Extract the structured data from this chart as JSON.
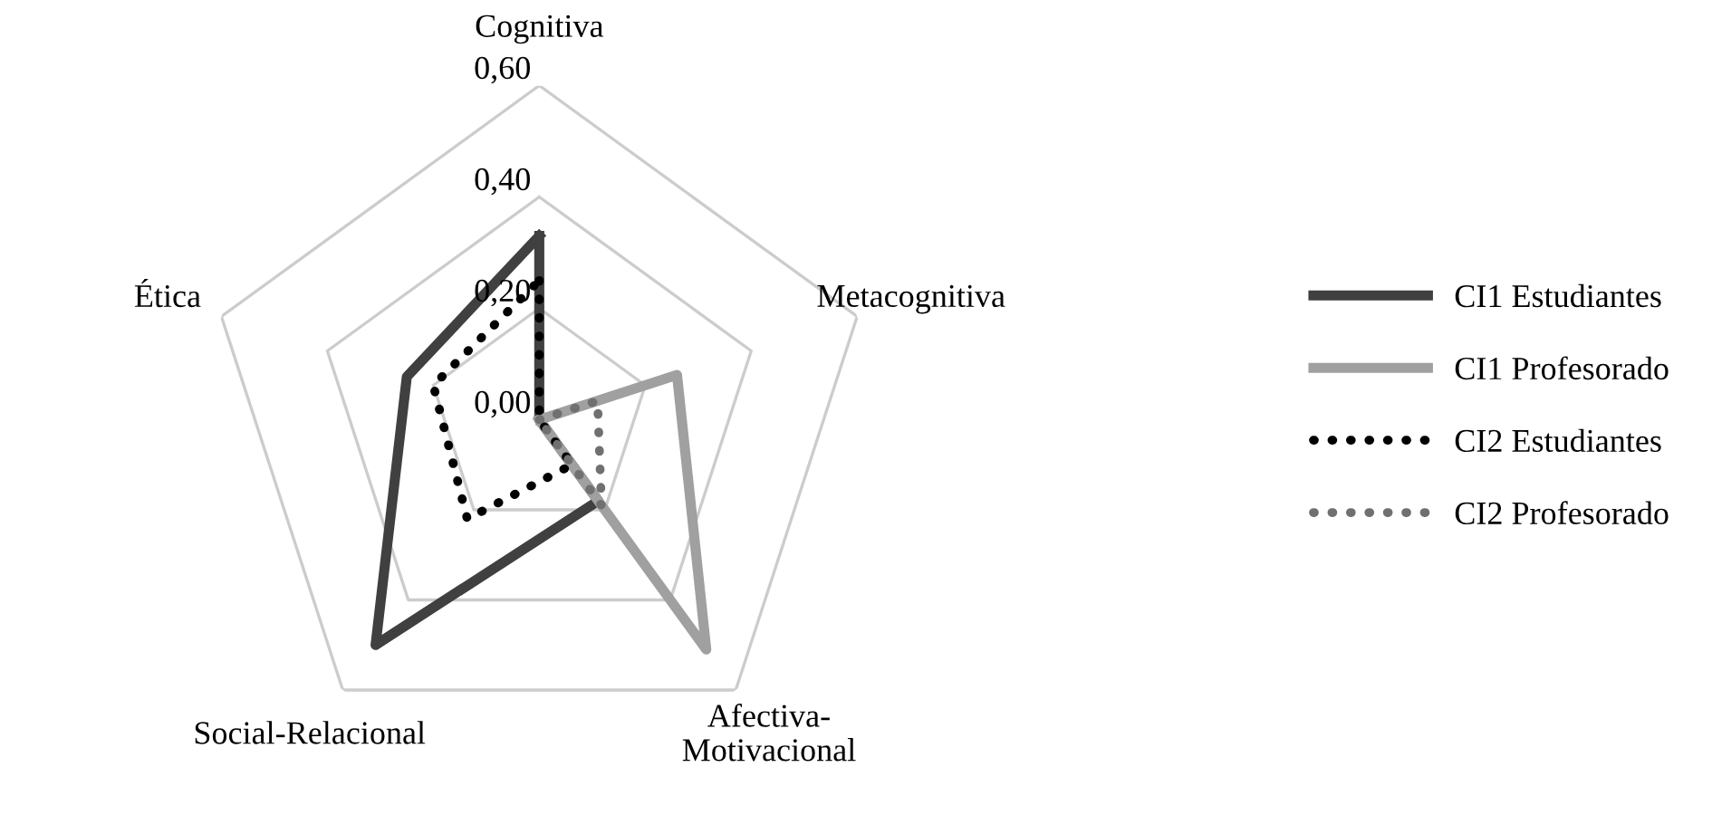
{
  "chart_data": {
    "type": "radar",
    "categories": [
      "Cognitiva",
      "Metacognitiva",
      "Afectiva-\nMotivacional",
      "Social-Relacional",
      "Ética"
    ],
    "ylim": [
      0,
      0.6
    ],
    "yticks": [
      {
        "value": 0,
        "label": "0,00"
      },
      {
        "value": 0.2,
        "label": "0,20"
      },
      {
        "value": 0.4,
        "label": "0,40"
      },
      {
        "value": 0.6,
        "label": "0,60"
      }
    ],
    "grid": true,
    "legend": "right",
    "series": [
      {
        "name": "CI1 Estudiantes",
        "color": "#404040",
        "line_style": "solid",
        "values": [
          0.33,
          0.0,
          0.18,
          0.5,
          0.25
        ]
      },
      {
        "name": "CI1 Profesorado",
        "color": "#a0a0a0",
        "line_style": "solid",
        "values": [
          0.0,
          0.26,
          0.51,
          0.0,
          0.0
        ]
      },
      {
        "name": "CI2 Estudiantes",
        "color": "#000000",
        "line_style": "dotted",
        "values": [
          0.25,
          0.0,
          0.1,
          0.22,
          0.2
        ]
      },
      {
        "name": "CI2 Profesorado",
        "color": "#707070",
        "line_style": "dotted",
        "values": [
          0.0,
          0.11,
          0.19,
          0.0,
          0.0
        ]
      }
    ]
  }
}
